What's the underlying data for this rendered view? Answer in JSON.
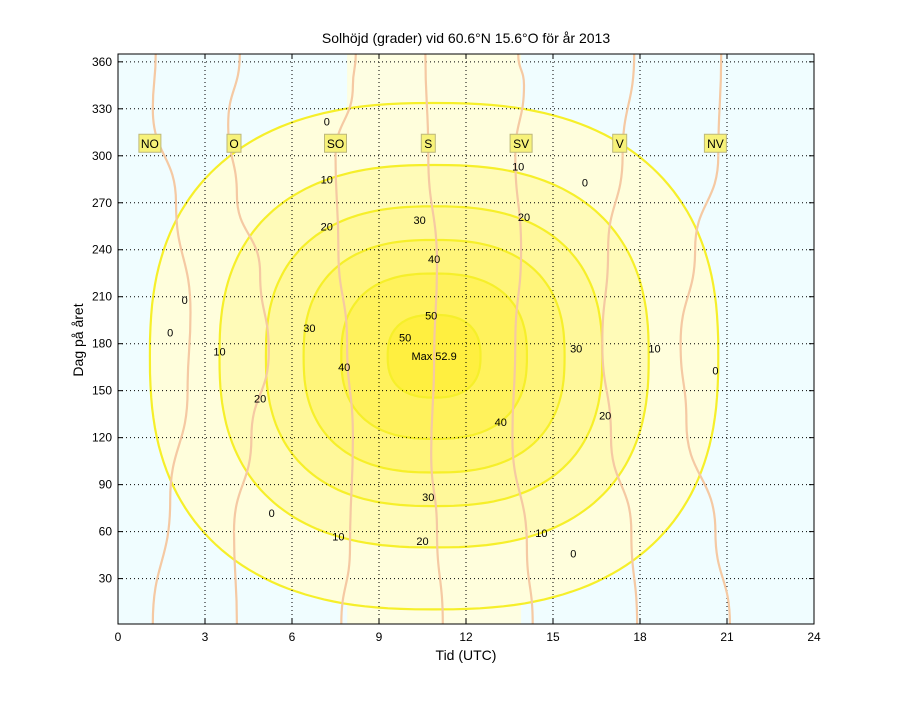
{
  "chart_data": {
    "type": "heatmap",
    "title": "Solhöjd (grader) vid 60.6°N 15.6°O för år 2013",
    "xlabel": "Tid (UTC)",
    "ylabel": "Dag på året",
    "xlim": [
      0,
      24
    ],
    "ylim": [
      1,
      365
    ],
    "x_ticks": [
      0,
      3,
      6,
      9,
      12,
      15,
      18,
      21,
      24
    ],
    "y_ticks": [
      30,
      60,
      90,
      120,
      150,
      180,
      210,
      240,
      270,
      300,
      330,
      360
    ],
    "grid": "dotted",
    "contour_levels": [
      0,
      10,
      20,
      30,
      40,
      50
    ],
    "max_label": "Max 52.9",
    "max_value": 52.9,
    "max_point": {
      "x": 10.9,
      "y": 172
    },
    "contours": [
      {
        "level": 0,
        "hour_at_noon": 10.9,
        "half_width_summer": 9.8,
        "half_width_winter": 3.0
      },
      {
        "level": 10,
        "hour_at_noon": 10.9,
        "half_width_summer": 7.4,
        "half_width_winter": 1.4
      },
      {
        "level": 20,
        "hour_at_noon": 10.9,
        "half_width_summer": 5.8,
        "half_width_winter": 0.6
      },
      {
        "level": 30,
        "hour_at_noon": 10.9,
        "half_width_summer": 4.5
      },
      {
        "level": 40,
        "hour_at_noon": 10.9,
        "half_width_summer": 3.2
      },
      {
        "level": 50,
        "hour_at_noon": 10.9,
        "half_width_summer": 1.6
      }
    ],
    "contour_labels": [
      {
        "text": "0",
        "x": 1.8,
        "y": 187
      },
      {
        "text": "0",
        "x": 2.3,
        "y": 208
      },
      {
        "text": "0",
        "x": 7.2,
        "y": 322
      },
      {
        "text": "0",
        "x": 5.3,
        "y": 72
      },
      {
        "text": "0",
        "x": 15.7,
        "y": 46
      },
      {
        "text": "0",
        "x": 16.1,
        "y": 283
      },
      {
        "text": "0",
        "x": 20.6,
        "y": 163
      },
      {
        "text": "10",
        "x": 3.5,
        "y": 175
      },
      {
        "text": "10",
        "x": 7.2,
        "y": 285
      },
      {
        "text": "10",
        "x": 7.6,
        "y": 57
      },
      {
        "text": "10",
        "x": 13.8,
        "y": 293
      },
      {
        "text": "10",
        "x": 14.6,
        "y": 59
      },
      {
        "text": "10",
        "x": 18.5,
        "y": 177
      },
      {
        "text": "20",
        "x": 4.9,
        "y": 145
      },
      {
        "text": "20",
        "x": 7.2,
        "y": 255
      },
      {
        "text": "20",
        "x": 10.5,
        "y": 54
      },
      {
        "text": "20",
        "x": 14.0,
        "y": 261
      },
      {
        "text": "20",
        "x": 16.8,
        "y": 134
      },
      {
        "text": "30",
        "x": 6.6,
        "y": 190
      },
      {
        "text": "30",
        "x": 10.4,
        "y": 259
      },
      {
        "text": "30",
        "x": 10.7,
        "y": 82
      },
      {
        "text": "30",
        "x": 15.8,
        "y": 177
      },
      {
        "text": "40",
        "x": 7.8,
        "y": 165
      },
      {
        "text": "40",
        "x": 10.9,
        "y": 234
      },
      {
        "text": "40",
        "x": 13.2,
        "y": 130
      },
      {
        "text": "50",
        "x": 9.9,
        "y": 184
      },
      {
        "text": "50",
        "x": 10.8,
        "y": 198
      }
    ],
    "direction_lines": [
      {
        "label": "NO",
        "x_at_day": [
          [
            1.2,
            1
          ],
          [
            1.8,
            80
          ],
          [
            2.4,
            150
          ],
          [
            2.5,
            200
          ],
          [
            2.0,
            270
          ],
          [
            1.2,
            330
          ],
          [
            1.3,
            365
          ]
        ]
      },
      {
        "label": "O",
        "x_at_day": [
          [
            4.1,
            1
          ],
          [
            4.0,
            60
          ],
          [
            4.6,
            120
          ],
          [
            5.2,
            175
          ],
          [
            4.9,
            225
          ],
          [
            4.1,
            275
          ],
          [
            3.8,
            320
          ],
          [
            4.2,
            365
          ]
        ]
      },
      {
        "label": "SO",
        "x_at_day": [
          [
            7.7,
            1
          ],
          [
            8.0,
            50
          ],
          [
            8.1,
            120
          ],
          [
            7.9,
            180
          ],
          [
            7.6,
            240
          ],
          [
            7.5,
            300
          ],
          [
            8.1,
            345
          ],
          [
            8.2,
            365
          ]
        ]
      },
      {
        "label": "S",
        "x_at_day": [
          [
            11.2,
            1
          ],
          [
            11.0,
            60
          ],
          [
            10.8,
            110
          ],
          [
            10.9,
            170
          ],
          [
            11.0,
            230
          ],
          [
            10.7,
            300
          ],
          [
            10.6,
            365
          ]
        ]
      },
      {
        "label": "SV",
        "x_at_day": [
          [
            14.3,
            1
          ],
          [
            14.1,
            50
          ],
          [
            13.6,
            120
          ],
          [
            13.7,
            180
          ],
          [
            13.9,
            240
          ],
          [
            13.7,
            300
          ],
          [
            14.0,
            345
          ],
          [
            13.8,
            365
          ]
        ]
      },
      {
        "label": "V",
        "x_at_day": [
          [
            17.9,
            1
          ],
          [
            17.7,
            60
          ],
          [
            17.0,
            120
          ],
          [
            16.7,
            180
          ],
          [
            16.9,
            240
          ],
          [
            17.4,
            300
          ],
          [
            17.8,
            365
          ]
        ]
      },
      {
        "label": "NV",
        "x_at_day": [
          [
            21.1,
            1
          ],
          [
            20.6,
            60
          ],
          [
            19.6,
            130
          ],
          [
            19.4,
            180
          ],
          [
            19.9,
            240
          ],
          [
            20.7,
            300
          ],
          [
            20.8,
            365
          ]
        ]
      }
    ],
    "direction_labels_day": 308,
    "direction_labels": [
      {
        "text": "NO",
        "x": 1.1
      },
      {
        "text": "O",
        "x": 4.0
      },
      {
        "text": "SO",
        "x": 7.5
      },
      {
        "text": "S",
        "x": 10.7
      },
      {
        "text": "SV",
        "x": 13.9
      },
      {
        "text": "V",
        "x": 17.3
      },
      {
        "text": "NV",
        "x": 20.6
      }
    ],
    "colors": {
      "background": "#f0fdff",
      "night_band": "#e8fbfd",
      "day_band": "#fefee2",
      "fill_levels": [
        "#fffedc",
        "#fffbb8",
        "#fff89a",
        "#fff57a",
        "#fff25c",
        "#ffef40"
      ],
      "contour_line": "#f6ef2a",
      "direction_line": "#f5c9a3",
      "label_box": "#f7f27a",
      "label_box_edge": "#bdb87a"
    }
  }
}
